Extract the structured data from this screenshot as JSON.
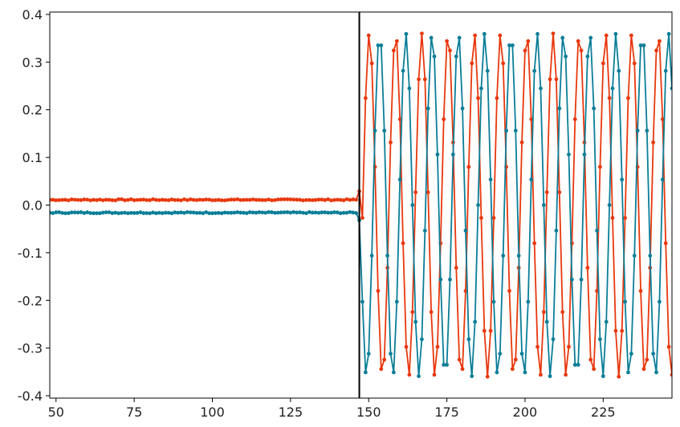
{
  "chart_data": {
    "type": "line",
    "title": "",
    "xlabel": "",
    "ylabel": "",
    "xlim": [
      48,
      247
    ],
    "ylim": [
      -0.405,
      0.405
    ],
    "x_ticks": [
      50,
      75,
      100,
      125,
      150,
      175,
      200,
      225
    ],
    "x_tick_labels": [
      "50",
      "75",
      "100",
      "125",
      "150",
      "175",
      "200",
      "225"
    ],
    "y_ticks": [
      0.4,
      0.3,
      0.2,
      0.1,
      0.0,
      -0.1,
      -0.2,
      -0.3,
      -0.4
    ],
    "y_tick_labels": [
      "0.4",
      "0.3",
      "0.2",
      "0.1",
      "0.0",
      "-0.1",
      "-0.2",
      "-0.3",
      "-0.4"
    ],
    "grid": false,
    "legend": "none",
    "vertical_marker": {
      "x": 147,
      "color": "#000000"
    },
    "transition_x": 147,
    "series": [
      {
        "color": "#E8380D",
        "marker": "circle",
        "pre_transition_value": 0.011,
        "oscillation": {
          "amplitude": 0.36,
          "period": 8.4,
          "first_peak_x": 150.2
        },
        "x_range": [
          48,
          247
        ]
      },
      {
        "color": "#0A7E98",
        "marker": "circle",
        "pre_transition_value": -0.016,
        "oscillation": {
          "amplitude": 0.36,
          "period": 8.4,
          "first_peak_x": 153.5
        },
        "x_range": [
          48,
          247
        ]
      }
    ]
  }
}
